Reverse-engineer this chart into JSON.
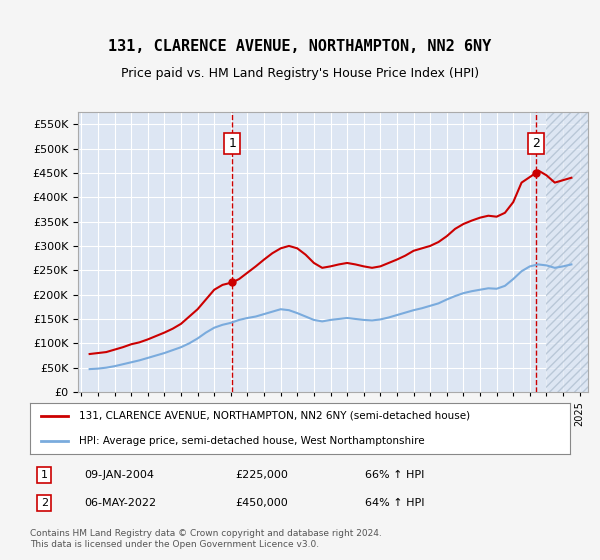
{
  "title": "131, CLARENCE AVENUE, NORTHAMPTON, NN2 6NY",
  "subtitle": "Price paid vs. HM Land Registry's House Price Index (HPI)",
  "background_color": "#e8eef7",
  "plot_bg_color": "#dde6f3",
  "hatch_color": "#c0ccdd",
  "ylabel_color": "#222222",
  "purchase1": {
    "date": "2004-01-09",
    "price": 225000,
    "label": "1",
    "pct": "66% ↑ HPI"
  },
  "purchase2": {
    "date": "2022-05-06",
    "price": 450000,
    "label": "2",
    "pct": "64% ↑ HPI"
  },
  "legend_line1": "131, CLARENCE AVENUE, NORTHAMPTON, NN2 6NY (semi-detached house)",
  "legend_line2": "HPI: Average price, semi-detached house, West Northamptonshire",
  "annotation1": "09-JAN-2004        £225,000        66% ↑ HPI",
  "annotation2": "06-MAY-2022        £450,000        64% ↑ HPI",
  "footer": "Contains HM Land Registry data © Crown copyright and database right 2024.\nThis data is licensed under the Open Government Licence v3.0.",
  "ylim": [
    0,
    575000
  ],
  "yticks": [
    0,
    50000,
    100000,
    150000,
    200000,
    250000,
    300000,
    350000,
    400000,
    450000,
    500000,
    550000
  ],
  "red_color": "#cc0000",
  "blue_color": "#6699cc",
  "hpi_color": "#7aabdd"
}
